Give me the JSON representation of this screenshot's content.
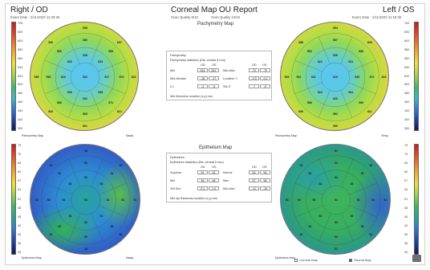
{
  "header": {
    "left_eye": "Right / OD",
    "title": "Corneal Map OU Report",
    "right_eye": "Left / OS",
    "exam_left": "Exam Date : 2/11/2020 11:30:35",
    "scan_quality_left": "Scan Quality 8/10",
    "scan_quality_right": "Scan Quality 10/10",
    "exam_right": "Exam Date : 1/11/2020 11:18:30"
  },
  "sections": {
    "pachymetry_title": "Pachymetry Map",
    "epithelium_title": "Epithelium Map"
  },
  "map_labels": {
    "pach_od": "Pachymetry Map",
    "pach_os": "Pachymetry Map",
    "epi_od": "Epithelium Map",
    "epi_os": "Epithelium Map",
    "temp": "Temp",
    "nasal": "Nasal",
    "sup": "S",
    "inf": "I"
  },
  "colorbar_pach": [
    "700",
    "650",
    "600",
    "580",
    "560",
    "540",
    "520",
    "500",
    "480",
    "460",
    "440",
    "400",
    "350"
  ],
  "colorbar_epi": [
    "75",
    "70",
    "65",
    "60",
    "57",
    "54",
    "51",
    "48",
    "45",
    "42",
    "39",
    "35",
    "30"
  ],
  "pach_od_values": {
    "center": "522",
    "r1": [
      "528",
      "533",
      "537",
      "535",
      "531",
      "526",
      "523",
      "525"
    ],
    "r2": [
      "560",
      "568",
      "574",
      "571",
      "565",
      "558",
      "553",
      "555"
    ],
    "r3": [
      "596",
      "607",
      "618",
      "613",
      "601",
      "592",
      "586",
      "590"
    ]
  },
  "pach_os_values": {
    "center": "519",
    "r1": [
      "526",
      "531",
      "535",
      "534",
      "529",
      "524",
      "521",
      "522"
    ],
    "r2": [
      "557",
      "566",
      "572",
      "569",
      "562",
      "556",
      "551",
      "553"
    ],
    "r3": [
      "594",
      "605",
      "615",
      "611",
      "599",
      "590",
      "583",
      "588"
    ]
  },
  "epi_od_values": {
    "center": "53",
    "r1": [
      "52",
      "53",
      "52",
      "51",
      "52",
      "53",
      "54",
      "53"
    ],
    "r2": [
      "50",
      "51",
      "52",
      "51",
      "50",
      "52",
      "53",
      "52"
    ],
    "r3": [
      "48",
      "49",
      "51",
      "50",
      "49",
      "51",
      "52",
      "51"
    ]
  },
  "epi_os_values": {
    "center": "54",
    "r1": [
      "53",
      "54",
      "53",
      "52",
      "53",
      "54",
      "55",
      "54"
    ],
    "r2": [
      "52",
      "53",
      "54",
      "53",
      "52",
      "53",
      "54",
      "53"
    ],
    "r3": [
      "51",
      "52",
      "53",
      "52",
      "51",
      "52",
      "53",
      "52"
    ]
  },
  "pach_panel": {
    "heading": "Pachymetry",
    "sub": "Pachymetry statistics (Dia: central 5 mm)",
    "col_a": "OD",
    "col_b": "OS",
    "rows_left": [
      {
        "label": "Min",
        "od": "514",
        "os": "512"
      },
      {
        "label": "Min-Median",
        "od": "-18",
        "os": "-17"
      },
      {
        "label": "S-I",
        "od": "-4",
        "os": "-6"
      }
    ],
    "rows_right": [
      {
        "label": "Min-Max",
        "od": "-72",
        "os": "-70"
      },
      {
        "label": "Location Y",
        "od": "-0.3",
        "os": "-0.2"
      },
      {
        "label": "SN-IT",
        "od": "-7",
        "os": "-5"
      }
    ],
    "footer": "Min thickness location (x,y) mm"
  },
  "epi_panel": {
    "heading": "Epithelium",
    "sub": "Epithelium statistics (Dia: central 5 mm)",
    "col_a": "OD",
    "col_b": "OS",
    "rows_left": [
      {
        "label": "Superior",
        "od": "51",
        "os": "52"
      },
      {
        "label": "Min",
        "od": "46",
        "os": "48"
      },
      {
        "label": "Std Dev",
        "od": "2.1",
        "os": "1.9"
      }
    ],
    "rows_right": [
      {
        "label": "Inferior",
        "od": "53",
        "os": "54"
      },
      {
        "label": "Max",
        "od": "57",
        "os": "58"
      },
      {
        "label": "Min-Max",
        "od": "-11",
        "os": "-10"
      }
    ],
    "footer": "Min epi thickness location (x,y) mm"
  },
  "footer": {
    "option_a": "Corneal Map",
    "option_b": "Stroma Map"
  },
  "colors": {
    "border": "#d4d4d4",
    "text": "#222222"
  }
}
